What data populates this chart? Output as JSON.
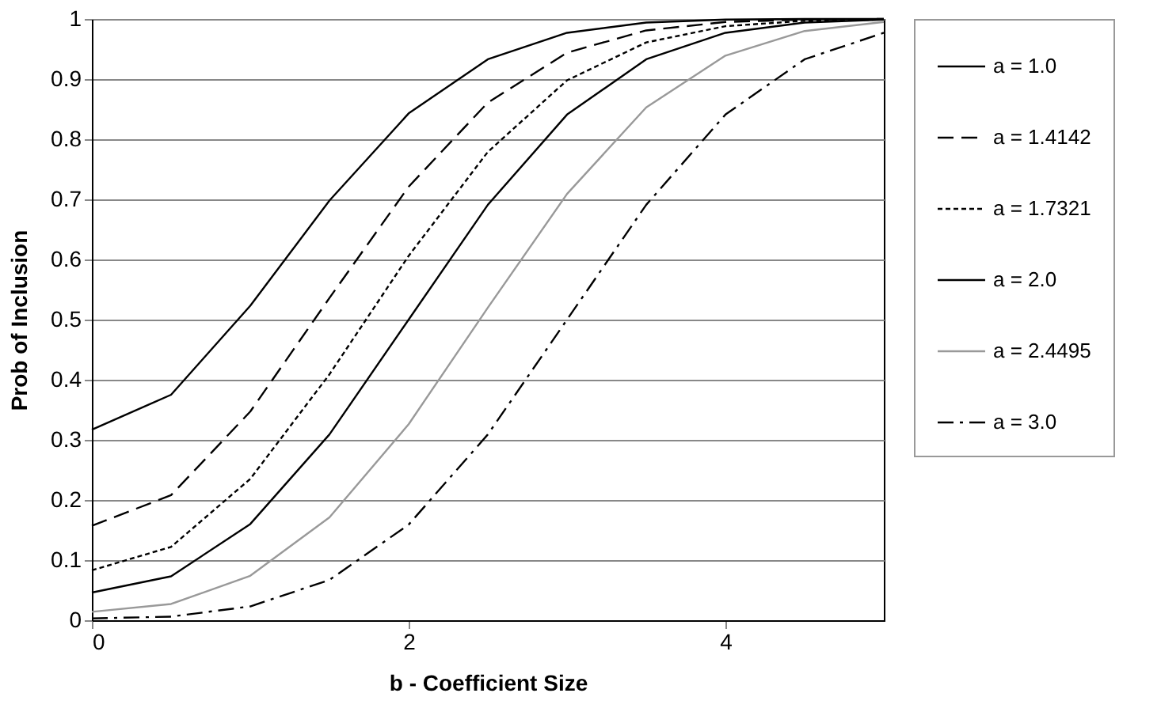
{
  "chart_data": {
    "type": "line",
    "xlabel": "b - Coefficient Size",
    "ylabel": "Prob of Inclusion",
    "x": [
      0,
      0.5,
      1,
      1.5,
      2,
      2.5,
      3,
      3.5,
      4,
      4.5,
      5
    ],
    "series": [
      {
        "name": "a = 1.0",
        "color": "#000000",
        "line_style": "solid",
        "values": [
          0.317,
          0.375,
          0.523,
          0.698,
          0.843,
          0.933,
          0.977,
          0.994,
          0.999,
          1,
          1
        ]
      },
      {
        "name": "a = 1.4142",
        "color": "#000000",
        "line_style": "dashed",
        "values": [
          0.157,
          0.208,
          0.347,
          0.536,
          0.721,
          0.861,
          0.944,
          0.981,
          0.995,
          0.999,
          1
        ]
      },
      {
        "name": "a = 1.7321",
        "color": "#000000",
        "line_style": "dotted",
        "values": [
          0.083,
          0.122,
          0.235,
          0.409,
          0.606,
          0.779,
          0.898,
          0.961,
          0.988,
          0.997,
          0.999
        ]
      },
      {
        "name": "a = 2.0",
        "color": "#000000",
        "line_style": "solid",
        "values": [
          0.046,
          0.073,
          0.16,
          0.309,
          0.5,
          0.691,
          0.841,
          0.933,
          0.977,
          0.994,
          0.999
        ]
      },
      {
        "name": "a = 2.4495",
        "color": "#999999",
        "line_style": "solid",
        "values": [
          0.014,
          0.027,
          0.074,
          0.171,
          0.326,
          0.52,
          0.709,
          0.853,
          0.939,
          0.98,
          0.995
        ]
      },
      {
        "name": "a = 3.0",
        "color": "#000000",
        "line_style": "dashdot",
        "values": [
          0.003,
          0.006,
          0.023,
          0.067,
          0.159,
          0.309,
          0.5,
          0.691,
          0.841,
          0.933,
          0.977
        ]
      }
    ],
    "xlim": [
      0,
      5
    ],
    "xticks": [
      0,
      2,
      4
    ],
    "ylim": [
      0,
      1
    ],
    "yticks": [
      0,
      0.1,
      0.2,
      0.3,
      0.4,
      0.5,
      0.6,
      0.7,
      0.8,
      0.9,
      1
    ],
    "grid": "y",
    "legend": "top right",
    "marker": "none"
  }
}
